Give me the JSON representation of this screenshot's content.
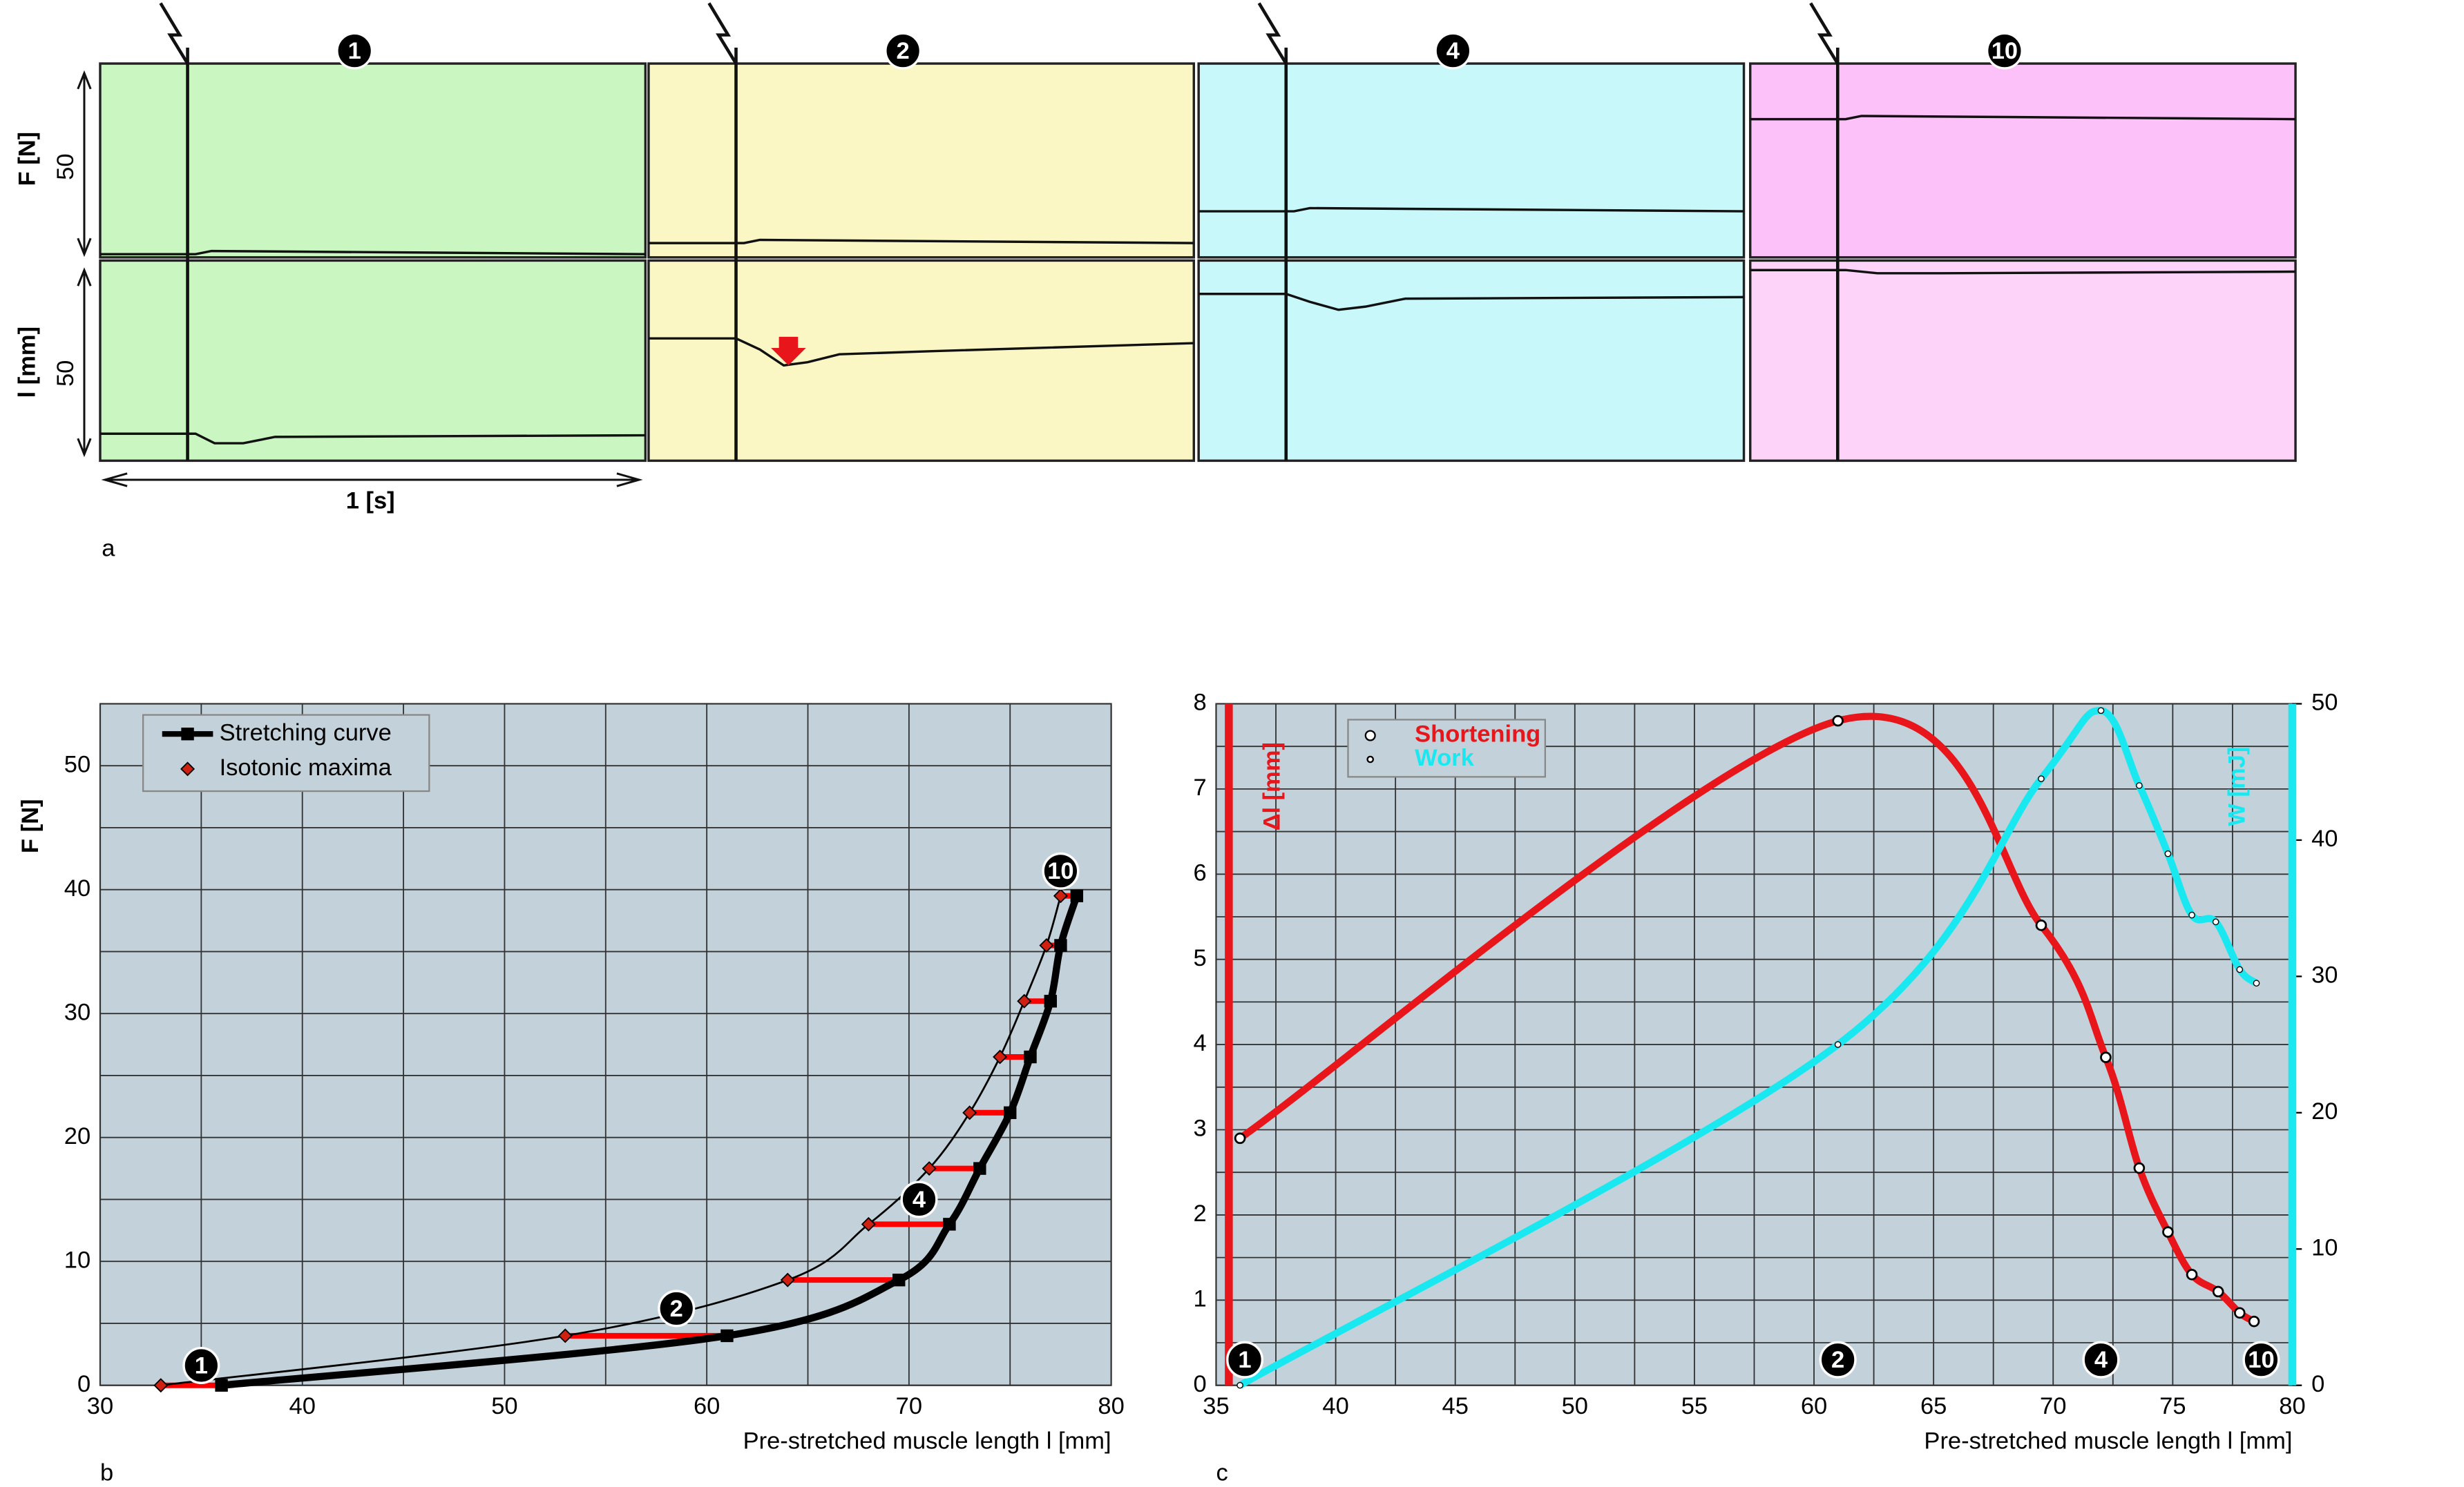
{
  "panel_a": {
    "label": "a",
    "conditions": [
      "1",
      "2",
      "4",
      "10"
    ],
    "force_axis": {
      "label": "F [N]",
      "tick": "50"
    },
    "length_axis": {
      "label": "l [mm]",
      "tick": "50"
    },
    "time_scale": "1 [s]"
  },
  "chart_data": [
    {
      "type": "line",
      "label": "b",
      "x_label": "Pre-stretched muscle length l [mm]",
      "y_label": "F [N]",
      "xlim": [
        30,
        80
      ],
      "ylim": [
        0,
        55
      ],
      "xticks": [
        30,
        40,
        50,
        60,
        70,
        80
      ],
      "yticks": [
        0,
        10,
        20,
        30,
        40,
        50
      ],
      "minor_xticks": [
        35,
        45,
        55,
        65,
        75
      ],
      "minor_yticks": [
        5,
        15,
        25,
        35,
        45,
        55
      ],
      "grid": true,
      "background": "#c3d2da",
      "series": [
        {
          "name": "Stretching curve",
          "color": "#000000",
          "marker": "square",
          "x": [
            36,
            61,
            69.5,
            72,
            73.5,
            75,
            76,
            77,
            77.5,
            78.3
          ],
          "values": [
            0,
            4,
            8.5,
            13,
            17.5,
            22,
            26.5,
            31,
            35.5,
            39.5
          ]
        },
        {
          "name": "Isotonic maxima",
          "color": "#000000",
          "marker": "diamond",
          "marker_color": "#d02010",
          "x": [
            33,
            53,
            64,
            68,
            71,
            73,
            74.5,
            75.7,
            76.8,
            77.5
          ],
          "values": [
            0,
            4,
            8.5,
            13,
            17.5,
            22,
            26.5,
            31,
            35.5,
            39.5
          ]
        }
      ],
      "connector_color": "#ff0000",
      "annotations": [
        "1",
        "2",
        "4",
        "10"
      ]
    },
    {
      "type": "line",
      "label": "c",
      "x_label": "Pre-stretched muscle length l [mm]",
      "y_label": "Δl [mm]",
      "y2_label": "W [mJ]",
      "xlim": [
        35,
        80
      ],
      "ylim": [
        0,
        8
      ],
      "y2lim": [
        0,
        50
      ],
      "xticks": [
        35,
        40,
        45,
        50,
        55,
        60,
        65,
        70,
        75,
        80
      ],
      "yticks": [
        0,
        1,
        2,
        3,
        4,
        5,
        6,
        7,
        8
      ],
      "y2ticks": [
        0,
        10,
        20,
        30,
        40,
        50
      ],
      "minor_xticks": [
        37.5,
        42.5,
        47.5,
        52.5,
        57.5,
        62.5,
        67.5,
        72.5,
        77.5
      ],
      "minor_yticks": [
        0.5,
        1.5,
        2.5,
        3.5,
        4.5,
        5.5,
        6.5,
        7.5
      ],
      "grid": true,
      "background": "#c3d2da",
      "series": [
        {
          "name": "Shortening",
          "color": "#e8161b",
          "marker": "circle",
          "x": [
            36,
            61,
            69.5,
            72.2,
            73.6,
            74.8,
            75.8,
            76.9,
            77.8,
            78.4
          ],
          "values": [
            2.9,
            7.8,
            5.4,
            3.85,
            2.55,
            1.8,
            1.3,
            1.1,
            0.85,
            0.75
          ]
        },
        {
          "name": "Work",
          "color": "#1ae8f0",
          "marker": "dot",
          "axis": "y2",
          "x": [
            36,
            61,
            69.5,
            72,
            73.6,
            74.8,
            75.8,
            76.8,
            77.8,
            78.5
          ],
          "values": [
            0,
            25,
            44.5,
            49.5,
            44,
            39,
            34.5,
            34,
            30.5,
            29.5
          ]
        }
      ],
      "annotations": [
        "1",
        "2",
        "4",
        "10"
      ]
    }
  ]
}
